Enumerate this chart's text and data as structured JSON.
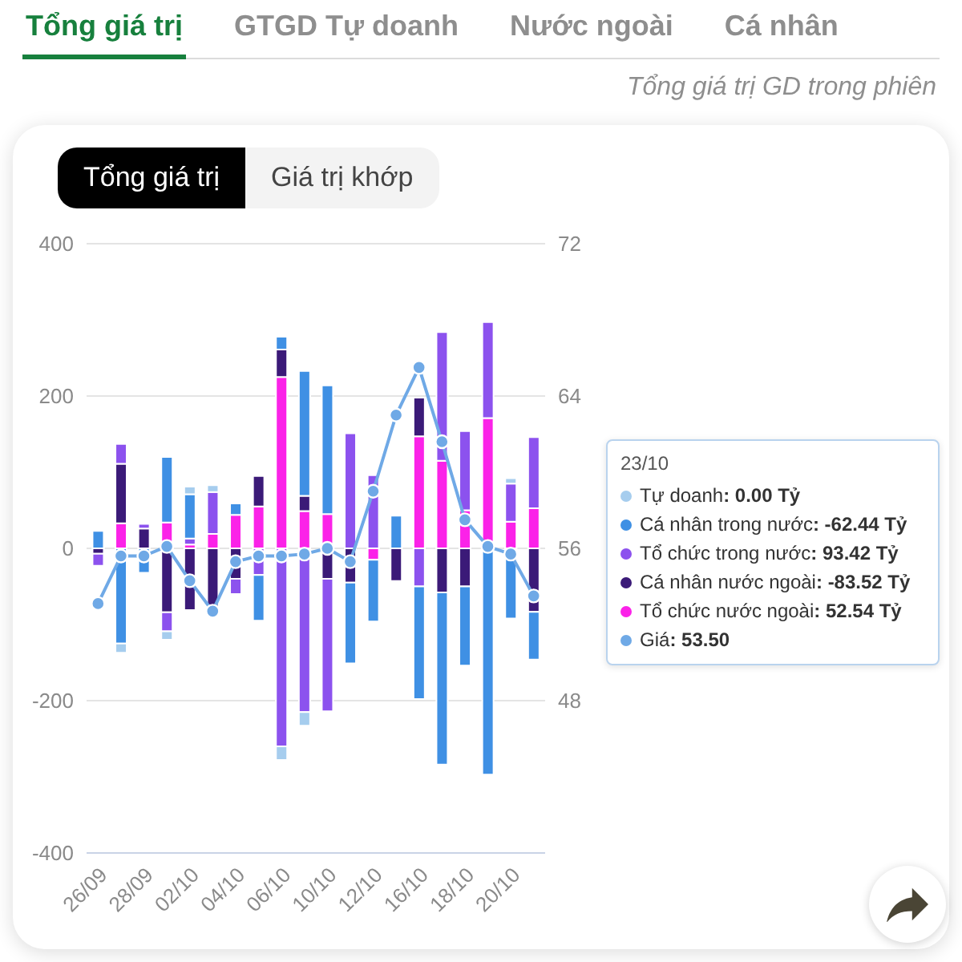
{
  "chart_data": {
    "type": "bar",
    "subtitle": "Tổng giá trị GD trong phiên",
    "annotations": [
      "Tổng giá trị",
      "GTGD Tự doanh",
      "Nước ngoài",
      "Cá nhân",
      "Tổng giá trị",
      "Giá trị khớp",
      "23/10",
      ": 0.00 Tỷ",
      ": -62.44 Tỷ",
      ": 93.42 Tỷ",
      ": -83.52 Tỷ",
      ": 52.54 Tỷ",
      ": 53.50"
    ],
    "categories": [
      "26/09",
      null,
      "28/09",
      null,
      "02/10",
      null,
      "04/10",
      null,
      "06/10",
      null,
      "10/10",
      null,
      "12/10",
      null,
      "16/10",
      null,
      "18/10",
      null,
      "20/10",
      null
    ],
    "stacked": true,
    "series": [
      {
        "name": "Tổ chức nước ngoài",
        "color": "#fb22e8",
        "values": [
          0,
          33,
          0,
          34,
          5,
          19,
          44,
          55,
          225,
          49,
          45,
          0,
          -15,
          0,
          147,
          115,
          50,
          171,
          35,
          52.54
        ]
      },
      {
        "name": "Cá nhân nước ngoài",
        "color": "#3b1a78",
        "values": [
          -7,
          78,
          26,
          -84,
          -81,
          -78,
          -40,
          40,
          36,
          20,
          -40,
          -45,
          0,
          -43,
          51,
          -58,
          -50,
          0,
          0,
          -83.52
        ]
      },
      {
        "name": "Tổ chức trong nước",
        "color": "#8c52ee",
        "values": [
          -16,
          26,
          6,
          -25,
          8,
          55,
          -20,
          -35,
          -260,
          -215,
          -174,
          151,
          96,
          0,
          -50,
          169,
          104,
          126,
          50,
          93.42
        ]
      },
      {
        "name": "Cá nhân trong nước",
        "color": "#3f90e4",
        "values": [
          23,
          -125,
          -32,
          86,
          58,
          null,
          15,
          -60,
          17,
          164,
          169,
          -106,
          -81,
          43,
          -148,
          -226,
          -104,
          -297,
          -92,
          -62.44
        ]
      },
      {
        "name": "Tự doanh",
        "color": "#a6cdee",
        "values": [
          0,
          -12,
          0,
          -11,
          10,
          9,
          0,
          0,
          -18,
          -18,
          0,
          0,
          0,
          0,
          0,
          0,
          0,
          0,
          7,
          0
        ]
      },
      {
        "name": "Giá",
        "type": "line",
        "axis": "y2",
        "color": "#6fa9e6",
        "marker": "circle",
        "values": [
          53.1,
          55.6,
          55.6,
          56.1,
          54.3,
          52.7,
          55.3,
          55.6,
          55.6,
          55.7,
          56.0,
          55.3,
          59.0,
          63.0,
          65.5,
          61.6,
          57.5,
          56.1,
          55.7,
          53.5
        ]
      }
    ],
    "ylim": [
      -400,
      400
    ],
    "yticks": [
      -400,
      -200,
      0,
      200,
      400
    ],
    "y2lim": [
      40,
      72
    ],
    "y2ticks": [
      48,
      56,
      64,
      72
    ],
    "grid": "y",
    "legend": "right"
  }
}
